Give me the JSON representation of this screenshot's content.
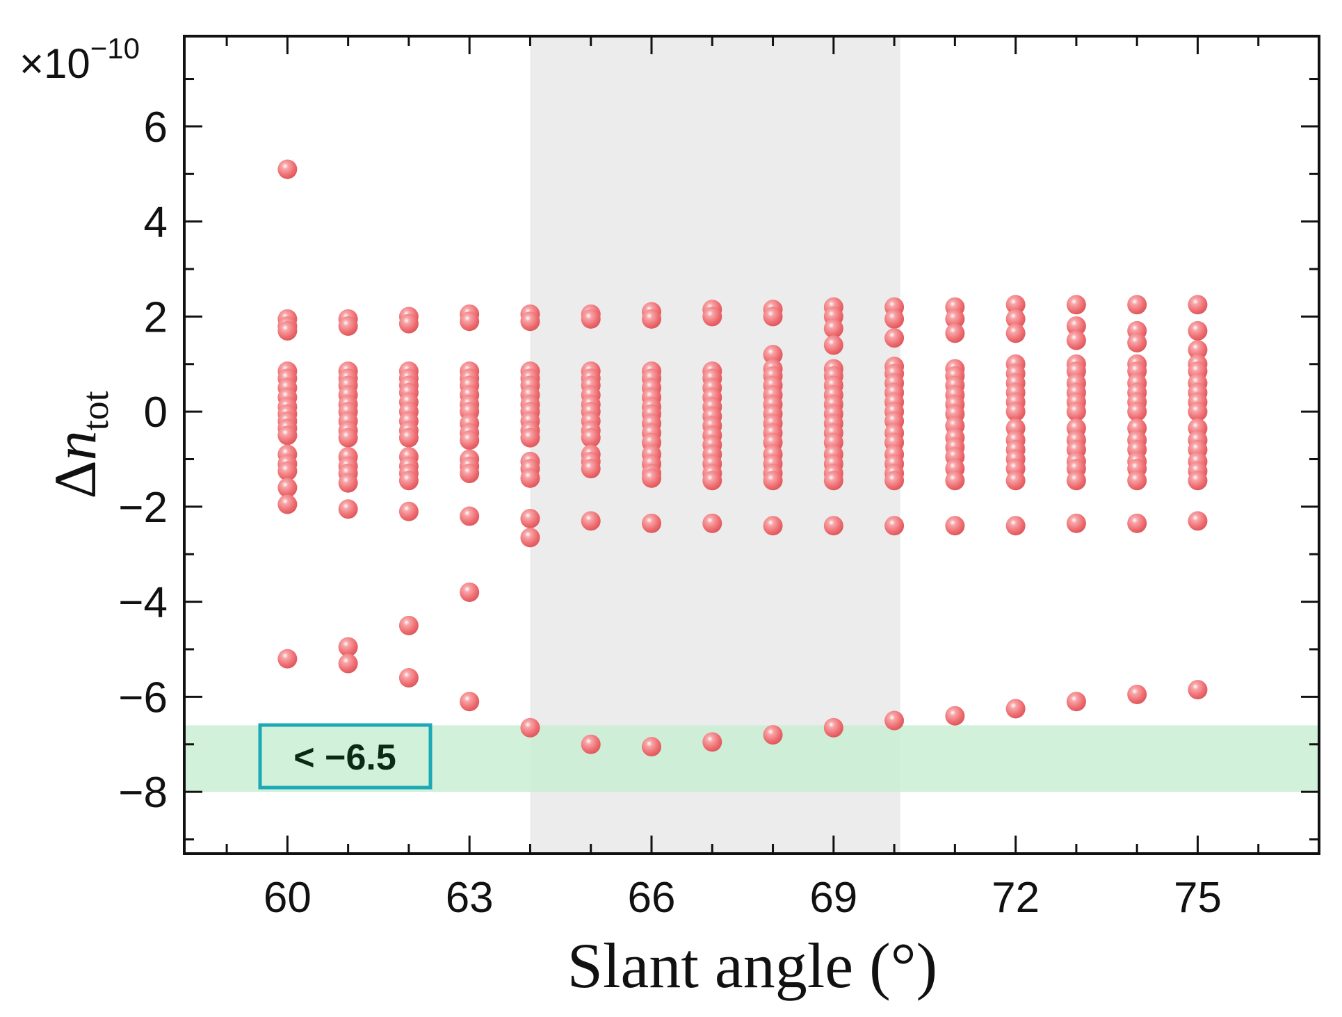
{
  "chart_data": {
    "type": "scatter",
    "xlabel": "Slant angle (°)",
    "ylabel": {
      "symbol": "Δ",
      "var": "n",
      "sub": "tot"
    },
    "y_multiplier": {
      "prefix": "×10",
      "exponent": "−10"
    },
    "xlim": [
      58.3,
      77
    ],
    "ylim": [
      -9.3,
      7.9
    ],
    "x_ticks": [
      {
        "value": 60,
        "label": "60"
      },
      {
        "value": 63,
        "label": "63"
      },
      {
        "value": 66,
        "label": "66"
      },
      {
        "value": 69,
        "label": "69"
      },
      {
        "value": 72,
        "label": "72"
      },
      {
        "value": 75,
        "label": "75"
      }
    ],
    "x_minor_step": 1,
    "y_ticks": [
      {
        "value": 6,
        "label": "6"
      },
      {
        "value": 4,
        "label": "4"
      },
      {
        "value": 2,
        "label": "2"
      },
      {
        "value": 0,
        "label": "0"
      },
      {
        "value": -2,
        "label": "−2"
      },
      {
        "value": -4,
        "label": "−4"
      },
      {
        "value": -6,
        "label": "−6"
      },
      {
        "value": -8,
        "label": "−8"
      }
    ],
    "y_minor_step": 1,
    "shaded_region_x": {
      "from": 64,
      "to": 70.1,
      "color": "#ececec"
    },
    "shaded_region_y": {
      "from": -8,
      "to": -6.6,
      "color": "#c9efd3"
    },
    "threshold_label": "< −6.5",
    "threshold_label_border": "#1aa9b5",
    "marker_color": "#ee6b6f",
    "series": [
      {
        "x": 60,
        "y": [
          5.1,
          1.95,
          1.8,
          1.7,
          0.85,
          0.7,
          0.5,
          0.3,
          0.1,
          -0.05,
          -0.2,
          -0.35,
          -0.5,
          -0.9,
          -1.1,
          -1.25,
          -1.6,
          -1.95,
          -5.2
        ]
      },
      {
        "x": 61,
        "y": [
          1.95,
          1.8,
          0.85,
          0.7,
          0.55,
          0.35,
          0.15,
          0,
          -0.2,
          -0.4,
          -0.55,
          -0.95,
          -1.15,
          -1.3,
          -1.5,
          -2.05,
          -4.95,
          -5.3
        ]
      },
      {
        "x": 62,
        "y": [
          2.0,
          1.85,
          0.85,
          0.7,
          0.55,
          0.4,
          0.2,
          0,
          -0.2,
          -0.4,
          -0.55,
          -0.95,
          -1.15,
          -1.3,
          -1.45,
          -2.1,
          -4.5,
          -5.6
        ]
      },
      {
        "x": 63,
        "y": [
          2.05,
          1.9,
          0.85,
          0.7,
          0.55,
          0.35,
          0.15,
          0,
          -0.25,
          -0.45,
          -0.6,
          -1.0,
          -1.15,
          -1.3,
          -2.2,
          -3.8,
          -6.1
        ]
      },
      {
        "x": 64,
        "y": [
          2.05,
          1.9,
          0.85,
          0.7,
          0.55,
          0.35,
          0.15,
          0,
          -0.2,
          -0.4,
          -0.55,
          -1.05,
          -1.2,
          -1.4,
          -2.25,
          -2.65,
          -6.65
        ]
      },
      {
        "x": 65,
        "y": [
          2.05,
          1.95,
          0.85,
          0.7,
          0.55,
          0.35,
          0.15,
          0,
          -0.2,
          -0.4,
          -0.55,
          -0.9,
          -1.05,
          -1.2,
          -2.3,
          -7.0
        ]
      },
      {
        "x": 66,
        "y": [
          2.1,
          1.95,
          0.85,
          0.7,
          0.5,
          0.3,
          0.1,
          -0.05,
          -0.25,
          -0.45,
          -0.65,
          -0.9,
          -1.1,
          -1.3,
          -1.4,
          -2.35,
          -7.05
        ]
      },
      {
        "x": 67,
        "y": [
          2.15,
          2.0,
          0.85,
          0.7,
          0.5,
          0.3,
          0.1,
          -0.1,
          -0.3,
          -0.5,
          -0.7,
          -0.9,
          -1.1,
          -1.3,
          -1.45,
          -2.35,
          -6.95
        ]
      },
      {
        "x": 68,
        "y": [
          2.15,
          2.0,
          1.2,
          0.9,
          0.75,
          0.55,
          0.35,
          0.15,
          -0.05,
          -0.25,
          -0.45,
          -0.65,
          -0.9,
          -1.1,
          -1.3,
          -1.45,
          -2.4,
          -6.8
        ]
      },
      {
        "x": 69,
        "y": [
          2.2,
          2.0,
          1.75,
          1.4,
          0.9,
          0.75,
          0.55,
          0.35,
          0.15,
          -0.05,
          -0.25,
          -0.45,
          -0.65,
          -0.9,
          -1.1,
          -1.3,
          -1.45,
          -2.4,
          -6.65
        ]
      },
      {
        "x": 70,
        "y": [
          2.2,
          1.95,
          1.55,
          0.95,
          0.8,
          0.6,
          0.4,
          0.2,
          0,
          -0.2,
          -0.45,
          -0.65,
          -0.9,
          -1.1,
          -1.3,
          -1.45,
          -2.4,
          -6.5
        ]
      },
      {
        "x": 71,
        "y": [
          2.2,
          1.95,
          1.65,
          0.9,
          0.75,
          0.55,
          0.35,
          0.15,
          -0.05,
          -0.3,
          -0.55,
          -0.75,
          -0.95,
          -1.2,
          -1.45,
          -2.4,
          -6.4
        ]
      },
      {
        "x": 72,
        "y": [
          2.25,
          1.95,
          1.65,
          1.0,
          0.8,
          0.6,
          0.4,
          0.2,
          0,
          -0.35,
          -0.6,
          -0.8,
          -1.0,
          -1.2,
          -1.45,
          -2.4,
          -6.25
        ]
      },
      {
        "x": 73,
        "y": [
          2.25,
          1.8,
          1.5,
          1.0,
          0.85,
          0.6,
          0.4,
          0.2,
          0,
          -0.35,
          -0.6,
          -0.8,
          -1.05,
          -1.2,
          -1.45,
          -2.35,
          -6.1
        ]
      },
      {
        "x": 74,
        "y": [
          2.25,
          1.7,
          1.45,
          1.0,
          0.85,
          0.6,
          0.4,
          0.2,
          0,
          -0.35,
          -0.6,
          -0.8,
          -1.05,
          -1.2,
          -1.45,
          -2.35,
          -5.95
        ]
      },
      {
        "x": 75,
        "y": [
          2.25,
          1.7,
          1.3,
          1.0,
          0.85,
          0.6,
          0.4,
          0.2,
          0,
          -0.35,
          -0.6,
          -0.8,
          -1.05,
          -1.25,
          -1.45,
          -2.3,
          -5.85
        ]
      }
    ]
  }
}
